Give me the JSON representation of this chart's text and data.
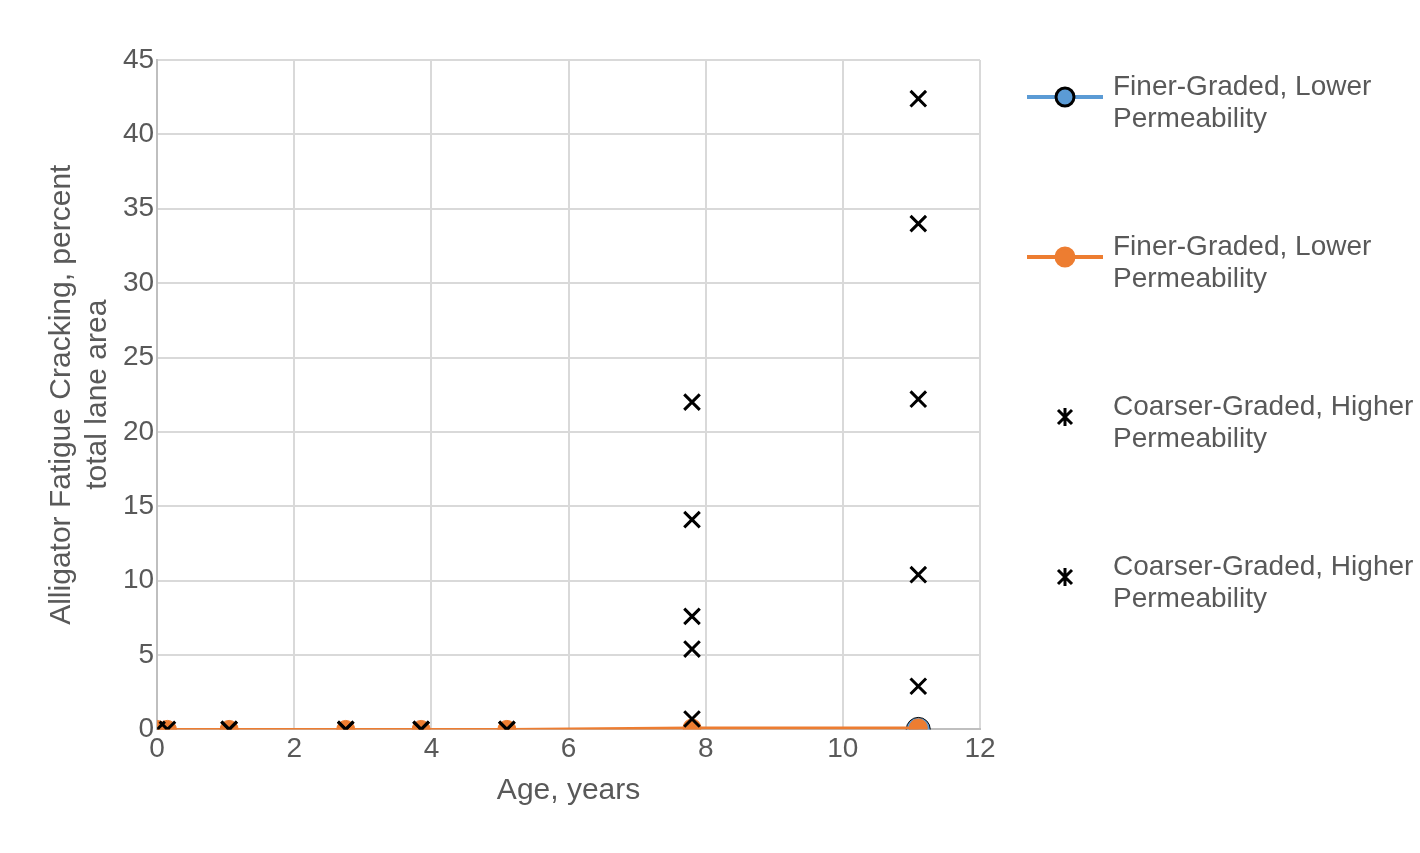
{
  "chart_data": {
    "type": "scatter",
    "xlabel": "Age, years",
    "ylabel": "Alligator Fatigue Cracking, percent total lane area",
    "xlim": [
      0,
      12
    ],
    "xticks": [
      0,
      2,
      4,
      6,
      8,
      10,
      12
    ],
    "ylim": [
      0,
      45
    ],
    "yticks": [
      0,
      5,
      10,
      15,
      20,
      25,
      30,
      35,
      40,
      45
    ],
    "grid": true,
    "legend": "right",
    "series": [
      {
        "name": "Finer-Graded, Lower Permeability",
        "type": "line",
        "marker": "circle",
        "color": "#5b9bd5",
        "x": [
          11.1
        ],
        "values": [
          0
        ]
      },
      {
        "name": "Finer-Graded, Lower Permeability",
        "type": "line",
        "marker": "circle",
        "color": "#ed7d31",
        "x": [
          0,
          0.15,
          1.05,
          2.75,
          3.85,
          5.1,
          7.8,
          11.1
        ],
        "values": [
          0,
          0,
          0,
          0,
          0,
          0,
          0.1,
          0.1
        ]
      },
      {
        "name": "Coarser-Graded, Higher Permeability",
        "marker": "cross",
        "color": "#000000",
        "x": [
          0,
          1.05,
          2.75,
          3.85,
          5.1,
          7.8,
          7.8,
          7.8,
          11.1,
          11.1,
          11.1
        ],
        "values": [
          0,
          0,
          0,
          0,
          0,
          22,
          14.1,
          0.7,
          42.4,
          22.2,
          2.9
        ]
      },
      {
        "name": "Coarser-Graded, Higher Permeability",
        "marker": "cross",
        "color": "#000000",
        "x": [
          0.15,
          1.05,
          2.75,
          3.85,
          5.1,
          7.8,
          7.8,
          11.1,
          11.1
        ],
        "values": [
          0,
          0,
          0,
          0,
          0,
          7.6,
          5.4,
          34,
          10.4
        ]
      }
    ]
  }
}
